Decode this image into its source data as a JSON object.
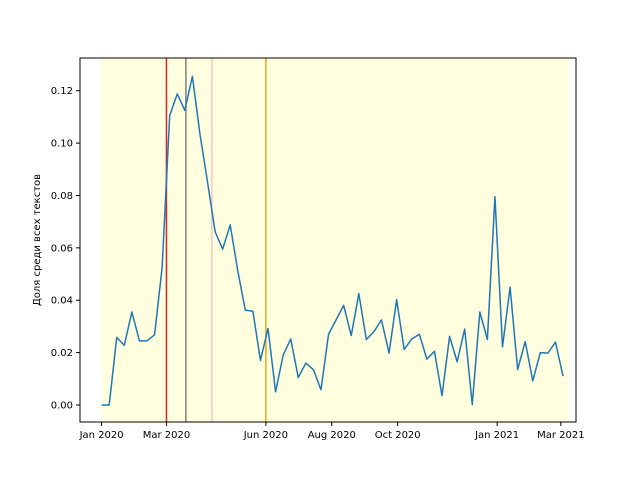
{
  "chart_data": {
    "type": "line",
    "title": "",
    "xlabel": "",
    "ylabel": "Доля среди всех текстов",
    "x_axis": {
      "type": "date",
      "range": [
        "2019-12-12",
        "2021-03-15"
      ],
      "ticks": [
        {
          "date": "2020-01-01",
          "label": "Jan 2020"
        },
        {
          "date": "2020-03-01",
          "label": "Mar 2020"
        },
        {
          "date": "2020-06-01",
          "label": "Jun 2020"
        },
        {
          "date": "2020-08-01",
          "label": "Aug 2020"
        },
        {
          "date": "2020-10-01",
          "label": "Oct 2020"
        },
        {
          "date": "2021-01-01",
          "label": "Jan 2021"
        },
        {
          "date": "2021-03-01",
          "label": "Mar 2021"
        }
      ]
    },
    "y_axis": {
      "range": [
        -0.0065,
        0.1325
      ],
      "ticks": [
        {
          "value": 0.0,
          "label": "0.00"
        },
        {
          "value": 0.02,
          "label": "0.02"
        },
        {
          "value": 0.04,
          "label": "0.04"
        },
        {
          "value": 0.06,
          "label": "0.06"
        },
        {
          "value": 0.08,
          "label": "0.08"
        },
        {
          "value": 0.1,
          "label": "0.10"
        },
        {
          "value": 0.12,
          "label": "0.12"
        }
      ]
    },
    "grid": false,
    "shaded_region": {
      "start": "2020-01-01",
      "end": "2021-03-08",
      "color": "#ffffe0"
    },
    "vertical_lines": [
      {
        "date": "2020-03-01",
        "color": "#d62728"
      },
      {
        "date": "2020-03-19",
        "color": "#7f7f7f"
      },
      {
        "date": "2020-04-12",
        "color": "#f7c6c6"
      },
      {
        "date": "2020-06-01",
        "color": "#e6a817"
      }
    ],
    "series": [
      {
        "color": "#1f77b4",
        "points": [
          [
            "2020-01-01",
            0.0
          ],
          [
            "2020-01-08",
            0.0
          ],
          [
            "2020-01-15",
            0.0258
          ],
          [
            "2020-01-22",
            0.0228
          ],
          [
            "2020-01-29",
            0.0355
          ],
          [
            "2020-02-05",
            0.0245
          ],
          [
            "2020-02-12",
            0.0245
          ],
          [
            "2020-02-19",
            0.0268
          ],
          [
            "2020-02-26",
            0.0525
          ],
          [
            "2020-03-04",
            0.1105
          ],
          [
            "2020-03-11",
            0.1188
          ],
          [
            "2020-03-18",
            0.1125
          ],
          [
            "2020-03-25",
            0.1255
          ],
          [
            "2020-04-01",
            0.1035
          ],
          [
            "2020-04-08",
            0.0852
          ],
          [
            "2020-04-15",
            0.0662
          ],
          [
            "2020-04-22",
            0.0595
          ],
          [
            "2020-04-29",
            0.0688
          ],
          [
            "2020-05-06",
            0.0512
          ],
          [
            "2020-05-13",
            0.0362
          ],
          [
            "2020-05-20",
            0.0358
          ],
          [
            "2020-05-27",
            0.017
          ],
          [
            "2020-06-03",
            0.0292
          ],
          [
            "2020-06-10",
            0.005
          ],
          [
            "2020-06-17",
            0.019
          ],
          [
            "2020-06-24",
            0.0252
          ],
          [
            "2020-07-01",
            0.0105
          ],
          [
            "2020-07-08",
            0.016
          ],
          [
            "2020-07-15",
            0.0135
          ],
          [
            "2020-07-22",
            0.0058
          ],
          [
            "2020-07-29",
            0.027
          ],
          [
            "2020-08-05",
            0.0325
          ],
          [
            "2020-08-12",
            0.038
          ],
          [
            "2020-08-19",
            0.0265
          ],
          [
            "2020-08-26",
            0.0425
          ],
          [
            "2020-09-02",
            0.025
          ],
          [
            "2020-09-09",
            0.028
          ],
          [
            "2020-09-16",
            0.0325
          ],
          [
            "2020-09-23",
            0.0198
          ],
          [
            "2020-09-30",
            0.0402
          ],
          [
            "2020-10-07",
            0.0212
          ],
          [
            "2020-10-14",
            0.0252
          ],
          [
            "2020-10-21",
            0.027
          ],
          [
            "2020-10-28",
            0.0175
          ],
          [
            "2020-11-04",
            0.0205
          ],
          [
            "2020-11-11",
            0.0035
          ],
          [
            "2020-11-18",
            0.0262
          ],
          [
            "2020-11-25",
            0.0165
          ],
          [
            "2020-12-02",
            0.029
          ],
          [
            "2020-12-09",
            0.0002
          ],
          [
            "2020-12-16",
            0.0355
          ],
          [
            "2020-12-23",
            0.025
          ],
          [
            "2020-12-30",
            0.0795
          ],
          [
            "2021-01-06",
            0.0222
          ],
          [
            "2021-01-13",
            0.045
          ],
          [
            "2021-01-20",
            0.0135
          ],
          [
            "2021-01-27",
            0.0242
          ],
          [
            "2021-02-03",
            0.0092
          ],
          [
            "2021-02-10",
            0.02
          ],
          [
            "2021-02-17",
            0.0198
          ],
          [
            "2021-02-24",
            0.024
          ],
          [
            "2021-03-03",
            0.011
          ]
        ]
      }
    ]
  }
}
